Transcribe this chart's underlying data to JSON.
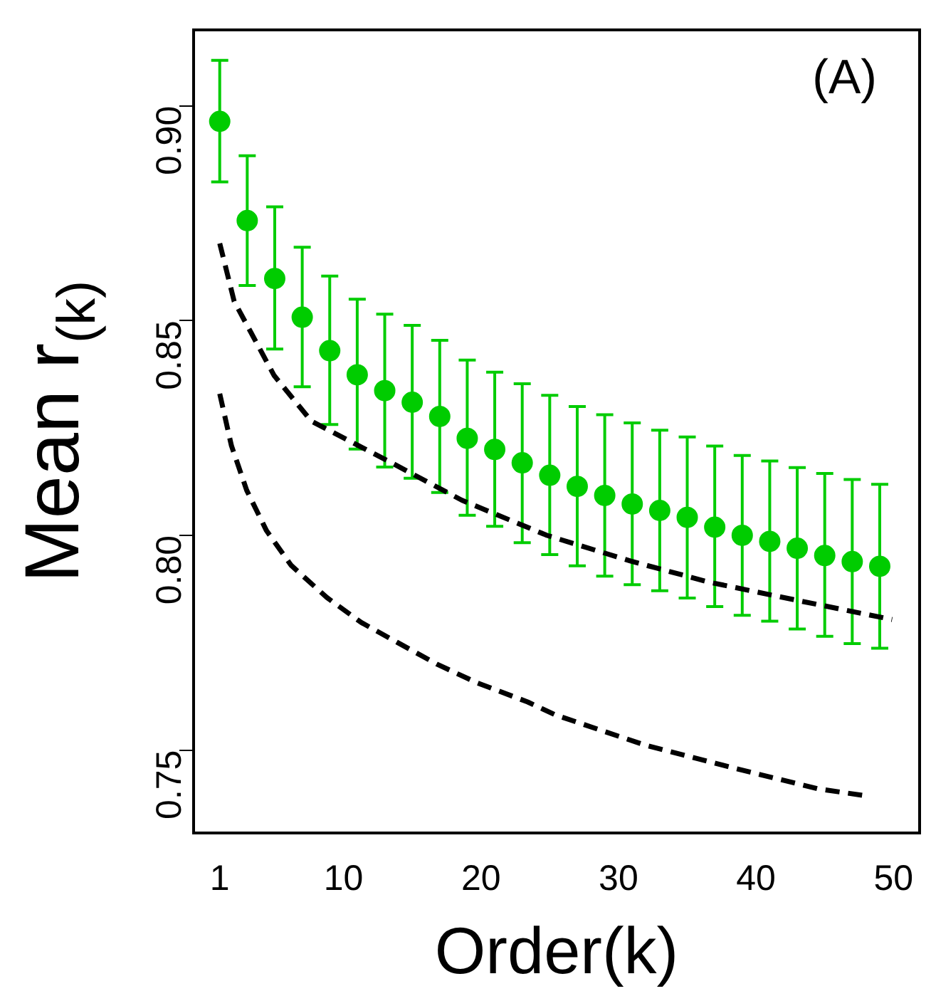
{
  "chart_data": {
    "type": "scatter",
    "xlabel": "Order(k)",
    "ylabel": "Mean r$_{(k)}$",
    "annotations": [
      "(A)"
    ],
    "xlim": [
      -0.9,
      51.9
    ],
    "ylim": [
      0.7307,
      0.9177
    ],
    "xticks": [
      1,
      10,
      20,
      30,
      40,
      50
    ],
    "yticks": [
      0.75,
      {
        "value": 0.8,
        "label": "0.80"
      },
      0.85,
      {
        "value": 0.9,
        "label": "0.90"
      }
    ],
    "grid": false,
    "legend": false,
    "marker": "circle",
    "series": [
      {
        "type": "scatter",
        "color": "#00cc00",
        "x": [
          1,
          3,
          5,
          7,
          9,
          11,
          13,
          15,
          17,
          19,
          21,
          23,
          25,
          27,
          29,
          31,
          33,
          35,
          37,
          39,
          41,
          43,
          45,
          47,
          49
        ],
        "values": [
          0.8964,
          0.8733,
          0.8598,
          0.8508,
          0.843,
          0.8374,
          0.8337,
          0.831,
          0.8277,
          0.8226,
          0.82,
          0.8169,
          0.814,
          0.8114,
          0.8093,
          0.8073,
          0.8058,
          0.8042,
          0.8019,
          0.8,
          0.7986,
          0.797,
          0.7953,
          0.7939,
          0.7928
        ],
        "errors": [
          [
            0.8823,
            0.9106
          ],
          [
            0.8582,
            0.8884
          ],
          [
            0.8434,
            0.8765
          ],
          [
            0.8346,
            0.8671
          ],
          [
            0.8258,
            0.8604
          ],
          [
            0.8201,
            0.855
          ],
          [
            0.8159,
            0.8515
          ],
          [
            0.8133,
            0.8489
          ],
          [
            0.81,
            0.8454
          ],
          [
            0.8047,
            0.8408
          ],
          [
            0.8021,
            0.838
          ],
          [
            0.7983,
            0.8353
          ],
          [
            0.7955,
            0.8326
          ],
          [
            0.7929,
            0.83
          ],
          [
            0.7905,
            0.8281
          ],
          [
            0.7885,
            0.8262
          ],
          [
            0.7871,
            0.8245
          ],
          [
            0.7854,
            0.8229
          ],
          [
            0.7834,
            0.8208
          ],
          [
            0.7814,
            0.8186
          ],
          [
            0.78,
            0.8173
          ],
          [
            0.7782,
            0.8158
          ],
          [
            0.7765,
            0.8144
          ],
          [
            0.7748,
            0.813
          ],
          [
            0.7737,
            0.8119
          ]
        ]
      },
      {
        "type": "line",
        "color": "#000000",
        "line_style": "dashed",
        "marker": "none",
        "x": [
          1,
          2.05,
          4.96,
          7.66,
          13.2,
          18.6,
          24.8,
          30.9,
          36.6,
          43.1,
          49.9
        ],
        "values": [
          0.868,
          0.8545,
          0.8372,
          0.8266,
          0.8174,
          0.8082,
          0.8,
          0.794,
          0.7891,
          0.7848,
          0.7804
        ]
      },
      {
        "type": "line",
        "color": "#000000",
        "line_style": "dashed",
        "marker": "none",
        "x": [
          1,
          1.85,
          2.96,
          4.4,
          6.2,
          8.8,
          11.3,
          13.9,
          16.8,
          19.7,
          23.4,
          25.4,
          31.9,
          38.4,
          44.5,
          47.9
        ],
        "values": [
          0.833,
          0.8209,
          0.8105,
          0.8011,
          0.793,
          0.7855,
          0.7797,
          0.7751,
          0.77,
          0.7657,
          0.7612,
          0.7582,
          0.7512,
          0.7458,
          0.741,
          0.7394
        ]
      }
    ]
  }
}
